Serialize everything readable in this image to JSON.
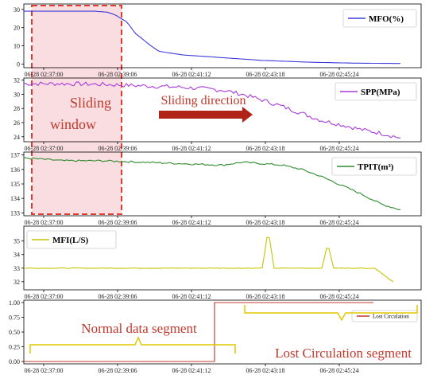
{
  "colors": {
    "mfo": "#3b3bdb",
    "spp": "#a93ad9",
    "tpit": "#2e8b2e",
    "mfi": "#c7c400",
    "lost": "#c0392b",
    "window": "#e23b2e",
    "window_fill": "#f4c1c6",
    "arrow": "#b02418",
    "brace": "#e0c800"
  },
  "x_ticks": [
    "06-28 02:37:00",
    "06-28 02:39:06",
    "06-28 02:41:12",
    "06-28 02:43:18",
    "06-28 02:45:24"
  ],
  "annotations": {
    "sliding_window": [
      "Sliding",
      "window"
    ],
    "sliding_direction": "Sliding direction",
    "normal_segment": "Normal data segment",
    "lost_segment": "Lost Circulation segment"
  },
  "chart_data": [
    {
      "type": "line",
      "id": "mfo",
      "series": [
        {
          "name": "MFO(%)"
        }
      ],
      "legend_position": "top-right",
      "ylim": [
        -2,
        33
      ],
      "yticks": [
        0,
        10,
        20,
        30
      ],
      "x": [
        0,
        6,
        14,
        18,
        21,
        23,
        26,
        28,
        32,
        34,
        40,
        60,
        72,
        83,
        95
      ],
      "y": [
        29,
        29,
        29,
        29,
        28.5,
        27,
        23,
        17,
        10,
        7,
        5,
        2,
        1,
        0.5,
        0.3
      ]
    },
    {
      "type": "line",
      "id": "spp",
      "series": [
        {
          "name": "SPP(MPa)"
        }
      ],
      "legend_position": "top-right",
      "ylim": [
        23.3,
        32.3
      ],
      "yticks": [
        24,
        26,
        28,
        30,
        32
      ],
      "x": [
        0,
        10,
        20,
        30,
        40,
        50,
        55,
        60,
        65,
        70,
        75,
        80,
        85,
        90,
        95
      ],
      "y": [
        31.5,
        31.5,
        31.4,
        31.2,
        31.0,
        30.6,
        30.0,
        29.2,
        28.3,
        27.3,
        26.3,
        25.7,
        25.0,
        24.5,
        23.8
      ],
      "noise": 0.6
    },
    {
      "type": "line",
      "id": "tpit",
      "series": [
        {
          "name": "TPIT(m³)"
        }
      ],
      "legend_position": "top-right",
      "ylim": [
        132.8,
        137.2
      ],
      "yticks": [
        133,
        134,
        135,
        136,
        137
      ],
      "x": [
        0,
        10,
        20,
        30,
        40,
        50,
        55,
        60,
        65,
        70,
        75,
        80,
        85,
        90,
        95
      ],
      "y": [
        136.8,
        136.6,
        136.6,
        136.5,
        136.4,
        136.3,
        136.5,
        136.4,
        136.3,
        136.0,
        135.5,
        134.9,
        134.3,
        133.6,
        133.2
      ],
      "noise": 0.12
    },
    {
      "type": "line",
      "id": "mfi",
      "series": [
        {
          "name": "MFI(L/S)"
        }
      ],
      "legend_position": "top-left",
      "ylim": [
        31.4,
        36.1
      ],
      "yticks": [
        32,
        33,
        34,
        35
      ],
      "x": [
        0,
        40,
        60,
        61.5,
        63,
        75,
        76.5,
        78,
        88,
        89,
        91,
        93
      ],
      "y": [
        33.0,
        33.0,
        33.0,
        35.8,
        33.0,
        33.0,
        34.8,
        33.0,
        33.0,
        32.9,
        32.4,
        32.0
      ],
      "noise": 0.05
    },
    {
      "type": "line",
      "id": "lost",
      "series": [
        {
          "name": "Lost Circulation"
        }
      ],
      "legend_position": "top-right",
      "ylim": [
        -0.04,
        1.04
      ],
      "yticks": [
        0.0,
        0.25,
        0.5,
        0.75,
        1.0
      ],
      "x": [
        0,
        48,
        48,
        88
      ],
      "y": [
        0,
        0,
        1,
        1
      ]
    }
  ]
}
